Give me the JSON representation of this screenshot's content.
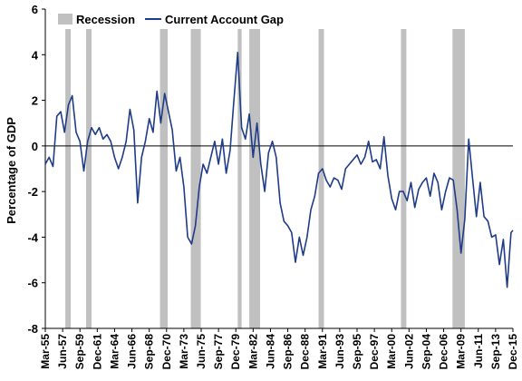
{
  "chart_data": {
    "type": "line",
    "title": "",
    "xlabel": "",
    "ylabel": "Percentage of GDP",
    "ylim": [
      -8,
      6
    ],
    "yticks": [
      6,
      4,
      2,
      0,
      -2,
      -4,
      -6,
      -8
    ],
    "xlim": [
      1955.0,
      2015.75
    ],
    "xtick_labels": [
      "Mar-55",
      "Jun-57",
      "Sep-59",
      "Dec-61",
      "Mar-64",
      "Jun-66",
      "Sep-68",
      "Dec-70",
      "Mar-73",
      "Jun-75",
      "Sep-77",
      "Dec-79",
      "Mar-82",
      "Jun-84",
      "Sep-86",
      "Dec-88",
      "Mar-91",
      "Jun-93",
      "Sep-95",
      "Dec-97",
      "Mar-00",
      "Jun-02",
      "Sep-04",
      "Dec-06",
      "Mar-09",
      "Jun-11",
      "Sep-13",
      "Dec-15"
    ],
    "legend": {
      "placement": "top",
      "entries": [
        "Recession",
        "Current Account Gap"
      ]
    },
    "colors": {
      "line": "#1f3c88",
      "recession": "#c0c0c0"
    },
    "recessions": [
      {
        "start": 1957.6,
        "end": 1958.3
      },
      {
        "start": 1960.3,
        "end": 1961.0
      },
      {
        "start": 1969.9,
        "end": 1970.9
      },
      {
        "start": 1973.9,
        "end": 1975.2
      },
      {
        "start": 1980.0,
        "end": 1980.5
      },
      {
        "start": 1981.5,
        "end": 1982.9
      },
      {
        "start": 1990.5,
        "end": 1991.2
      },
      {
        "start": 2001.2,
        "end": 2001.9
      },
      {
        "start": 2007.9,
        "end": 2009.5
      }
    ],
    "series": [
      {
        "name": "Current Account Gap",
        "x": [
          1955.0,
          1955.5,
          1956.0,
          1956.5,
          1957.0,
          1957.5,
          1958.0,
          1958.5,
          1959.0,
          1959.5,
          1960.0,
          1960.5,
          1961.0,
          1961.5,
          1962.0,
          1962.5,
          1963.0,
          1963.5,
          1964.0,
          1964.5,
          1965.0,
          1965.5,
          1966.0,
          1966.5,
          1967.0,
          1967.5,
          1968.0,
          1968.5,
          1969.0,
          1969.5,
          1970.0,
          1970.5,
          1971.0,
          1971.5,
          1972.0,
          1972.5,
          1973.0,
          1973.5,
          1974.0,
          1974.5,
          1975.0,
          1975.5,
          1976.0,
          1976.5,
          1977.0,
          1977.5,
          1978.0,
          1978.5,
          1979.0,
          1979.5,
          1980.0,
          1980.5,
          1981.0,
          1981.5,
          1982.0,
          1982.5,
          1983.0,
          1983.5,
          1984.0,
          1984.5,
          1985.0,
          1985.5,
          1986.0,
          1986.5,
          1987.0,
          1987.5,
          1988.0,
          1988.5,
          1989.0,
          1989.5,
          1990.0,
          1990.5,
          1991.0,
          1991.5,
          1992.0,
          1992.5,
          1993.0,
          1993.5,
          1994.0,
          1994.5,
          1995.0,
          1995.5,
          1996.0,
          1996.5,
          1997.0,
          1997.5,
          1998.0,
          1998.5,
          1999.0,
          1999.5,
          2000.0,
          2000.5,
          2001.0,
          2001.5,
          2002.0,
          2002.5,
          2003.0,
          2003.5,
          2004.0,
          2004.5,
          2005.0,
          2005.5,
          2006.0,
          2006.5,
          2007.0,
          2007.5,
          2008.0,
          2008.5,
          2009.0,
          2009.5,
          2010.0,
          2010.5,
          2011.0,
          2011.5,
          2012.0,
          2012.5,
          2013.0,
          2013.5,
          2014.0,
          2014.5,
          2015.0,
          2015.5,
          2015.75
        ],
        "values": [
          -0.8,
          -0.5,
          -0.9,
          1.3,
          1.5,
          0.6,
          1.8,
          2.2,
          0.6,
          0.2,
          -1.1,
          0.2,
          0.8,
          0.5,
          0.8,
          0.3,
          0.5,
          0.2,
          -0.5,
          -1.0,
          -0.5,
          0.2,
          1.6,
          0.7,
          -2.5,
          -0.5,
          0.2,
          1.2,
          0.6,
          2.4,
          1.0,
          2.3,
          1.5,
          0.7,
          -1.1,
          -0.5,
          -1.8,
          -4.0,
          -4.3,
          -3.5,
          -1.8,
          -0.8,
          -1.2,
          -0.5,
          0.2,
          -0.8,
          0.3,
          -1.2,
          -0.2,
          2.0,
          4.1,
          0.8,
          0.3,
          1.4,
          -0.5,
          1.0,
          -0.8,
          -2.0,
          -0.3,
          0.2,
          -0.5,
          -2.5,
          -3.3,
          -3.5,
          -3.8,
          -5.1,
          -4.0,
          -4.8,
          -4.0,
          -2.8,
          -2.2,
          -1.2,
          -1.0,
          -1.5,
          -1.8,
          -1.4,
          -1.5,
          -1.9,
          -1.0,
          -0.8,
          -0.6,
          -0.4,
          -0.8,
          -0.5,
          0.2,
          -0.7,
          -0.6,
          -1.0,
          0.4,
          -1.3,
          -2.3,
          -2.8,
          -2.0,
          -2.0,
          -2.4,
          -1.6,
          -2.7,
          -1.9,
          -1.6,
          -1.4,
          -2.2,
          -1.2,
          -1.6,
          -2.8,
          -2.0,
          -1.4,
          -1.5,
          -2.8,
          -4.7,
          -3.2,
          0.3,
          -1.4,
          -3.1,
          -1.6,
          -3.1,
          -3.3,
          -4.0,
          -3.9,
          -5.2,
          -4.1,
          -6.2,
          -3.8,
          -3.7
        ]
      }
    ]
  }
}
